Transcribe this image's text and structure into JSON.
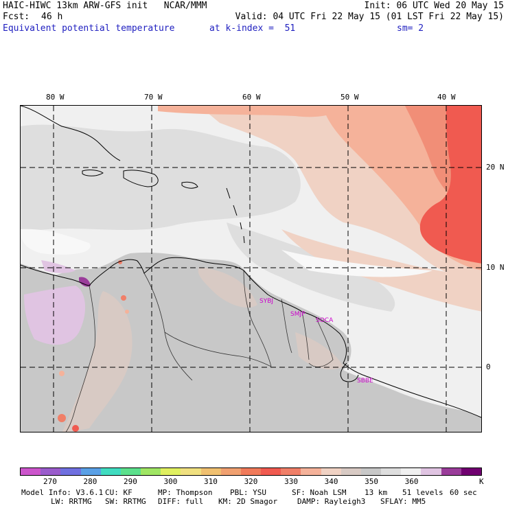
{
  "header": {
    "title": "HAIC-HIWC 13km ARW-GFS init   NCAR/MMM",
    "init": "Init: 06 UTC Wed 20 May 15",
    "fcst_label": "Fcst:",
    "fcst_value": "46 h",
    "valid": "Valid: 04 UTC Fri 22 May 15 (01 LST Fri 22 May 15)",
    "field": "Equivalent potential temperature",
    "level": "at k-index =  51",
    "smoothing": "sm= 2"
  },
  "map": {
    "lon_labels": [
      "80 W",
      "70 W",
      "60 W",
      "50 W",
      "40 W"
    ],
    "lat_labels": [
      "20 N",
      "10 N",
      "0"
    ],
    "stations": [
      "SYBJ",
      "SMJP",
      "SOCA",
      "SBBE"
    ],
    "colors": {
      "ocean_base": "#f0f0f0",
      "land_base": "#c8c8c8",
      "warm_1": "#f0d2c4",
      "warm_2": "#f5b29a",
      "warm_3": "#f07f68",
      "warm_4": "#f05a50",
      "cool_1": "#e0c4e2",
      "cool_2": "#9a3c9a",
      "station_color": "#cc00cc"
    }
  },
  "colorbar": {
    "labels": [
      "270",
      "280",
      "290",
      "300",
      "310",
      "320",
      "330",
      "340",
      "350",
      "360"
    ],
    "unit": "K",
    "colors": [
      "#cc55cc",
      "#9a5ccc",
      "#7070e0",
      "#5aa0e6",
      "#40dcc0",
      "#5ce08c",
      "#a0e664",
      "#e0f060",
      "#f0e080",
      "#f0c070",
      "#f0a070",
      "#f07a5a",
      "#f05a50",
      "#f07f68",
      "#f5b29a",
      "#f0d2c4",
      "#d8cac4",
      "#c8c8c8",
      "#dedede",
      "#f0f0f0",
      "#e0c4e2",
      "#9a3c9a",
      "#700070"
    ]
  },
  "footer": {
    "line1": [
      "Model Info: V3.6.1",
      "CU: KF",
      "MP: Thompson",
      "PBL: YSU",
      "SF: Noah LSM",
      "13 km",
      "51 levels",
      "60 sec"
    ],
    "line2": [
      "LW: RRTMG",
      "SW: RRTMG",
      "DIFF: full",
      "KM: 2D Smagor",
      "DAMP: Rayleigh3",
      "SFLAY: MM5"
    ]
  }
}
